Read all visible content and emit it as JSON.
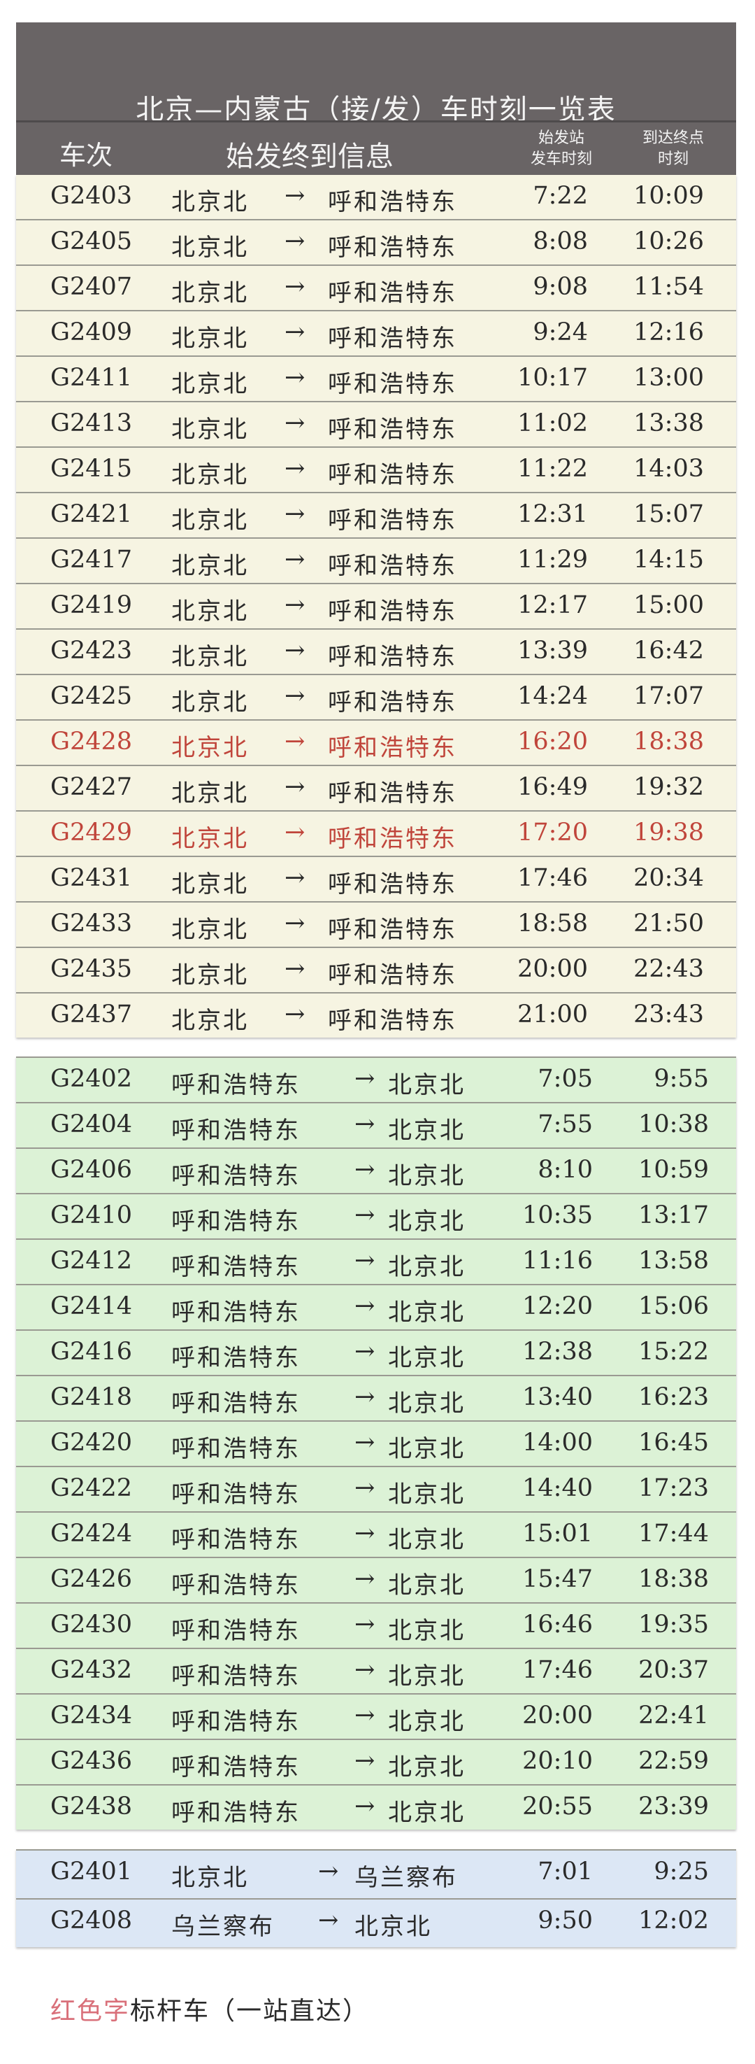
{
  "header": {
    "title": "北京—内蒙古（接/发）车时刻一览表",
    "col_train": "车次",
    "col_info": "始发终到信息",
    "col_depart": "始发站\n发车时刻",
    "col_arrive": "到达终点\n时刻"
  },
  "arrow": "→",
  "colors": {
    "highlight": "#c0453b",
    "section1_bg": "#f6f4e2",
    "section2_bg": "#dcf2d6",
    "section3_bg": "#dce7f5",
    "header_bg": "#696465"
  },
  "sections": [
    {
      "rows": [
        {
          "no": "G2403",
          "from": "北京北",
          "to": "呼和浩特东",
          "dep": "7:22",
          "arr": "10:09"
        },
        {
          "no": "G2405",
          "from": "北京北",
          "to": "呼和浩特东",
          "dep": "8:08",
          "arr": "10:26"
        },
        {
          "no": "G2407",
          "from": "北京北",
          "to": "呼和浩特东",
          "dep": "9:08",
          "arr": "11:54"
        },
        {
          "no": "G2409",
          "from": "北京北",
          "to": "呼和浩特东",
          "dep": "9:24",
          "arr": "12:16"
        },
        {
          "no": "G2411",
          "from": "北京北",
          "to": "呼和浩特东",
          "dep": "10:17",
          "arr": "13:00"
        },
        {
          "no": "G2413",
          "from": "北京北",
          "to": "呼和浩特东",
          "dep": "11:02",
          "arr": "13:38"
        },
        {
          "no": "G2415",
          "from": "北京北",
          "to": "呼和浩特东",
          "dep": "11:22",
          "arr": "14:03"
        },
        {
          "no": "G2421",
          "from": "北京北",
          "to": "呼和浩特东",
          "dep": "12:31",
          "arr": "15:07"
        },
        {
          "no": "G2417",
          "from": "北京北",
          "to": "呼和浩特东",
          "dep": "11:29",
          "arr": "14:15"
        },
        {
          "no": "G2419",
          "from": "北京北",
          "to": "呼和浩特东",
          "dep": "12:17",
          "arr": "15:00"
        },
        {
          "no": "G2423",
          "from": "北京北",
          "to": "呼和浩特东",
          "dep": "13:39",
          "arr": "16:42"
        },
        {
          "no": "G2425",
          "from": "北京北",
          "to": "呼和浩特东",
          "dep": "14:24",
          "arr": "17:07"
        },
        {
          "no": "G2428",
          "from": "北京北",
          "to": "呼和浩特东",
          "dep": "16:20",
          "arr": "18:38",
          "highlight": true
        },
        {
          "no": "G2427",
          "from": "北京北",
          "to": "呼和浩特东",
          "dep": "16:49",
          "arr": "19:32"
        },
        {
          "no": "G2429",
          "from": "北京北",
          "to": "呼和浩特东",
          "dep": "17:20",
          "arr": "19:38",
          "highlight": true
        },
        {
          "no": "G2431",
          "from": "北京北",
          "to": "呼和浩特东",
          "dep": "17:46",
          "arr": "20:34"
        },
        {
          "no": "G2433",
          "from": "北京北",
          "to": "呼和浩特东",
          "dep": "18:58",
          "arr": "21:50"
        },
        {
          "no": "G2435",
          "from": "北京北",
          "to": "呼和浩特东",
          "dep": "20:00",
          "arr": "22:43"
        },
        {
          "no": "G2437",
          "from": "北京北",
          "to": "呼和浩特东",
          "dep": "21:00",
          "arr": "23:43"
        }
      ]
    },
    {
      "rows": [
        {
          "no": "G2402",
          "from": "呼和浩特东",
          "to": "北京北",
          "dep": "7:05",
          "arr": "9:55"
        },
        {
          "no": "G2404",
          "from": "呼和浩特东",
          "to": "北京北",
          "dep": "7:55",
          "arr": "10:38"
        },
        {
          "no": "G2406",
          "from": "呼和浩特东",
          "to": "北京北",
          "dep": "8:10",
          "arr": "10:59"
        },
        {
          "no": "G2410",
          "from": "呼和浩特东",
          "to": "北京北",
          "dep": "10:35",
          "arr": "13:17"
        },
        {
          "no": "G2412",
          "from": "呼和浩特东",
          "to": "北京北",
          "dep": "11:16",
          "arr": "13:58"
        },
        {
          "no": "G2414",
          "from": "呼和浩特东",
          "to": "北京北",
          "dep": "12:20",
          "arr": "15:06"
        },
        {
          "no": "G2416",
          "from": "呼和浩特东",
          "to": "北京北",
          "dep": "12:38",
          "arr": "15:22"
        },
        {
          "no": "G2418",
          "from": "呼和浩特东",
          "to": "北京北",
          "dep": "13:40",
          "arr": "16:23"
        },
        {
          "no": "G2420",
          "from": "呼和浩特东",
          "to": "北京北",
          "dep": "14:00",
          "arr": "16:45"
        },
        {
          "no": "G2422",
          "from": "呼和浩特东",
          "to": "北京北",
          "dep": "14:40",
          "arr": "17:23"
        },
        {
          "no": "G2424",
          "from": "呼和浩特东",
          "to": "北京北",
          "dep": "15:01",
          "arr": "17:44"
        },
        {
          "no": "G2426",
          "from": "呼和浩特东",
          "to": "北京北",
          "dep": "15:47",
          "arr": "18:38"
        },
        {
          "no": "G2430",
          "from": "呼和浩特东",
          "to": "北京北",
          "dep": "16:46",
          "arr": "19:35"
        },
        {
          "no": "G2432",
          "from": "呼和浩特东",
          "to": "北京北",
          "dep": "17:46",
          "arr": "20:37"
        },
        {
          "no": "G2434",
          "from": "呼和浩特东",
          "to": "北京北",
          "dep": "20:00",
          "arr": "22:41"
        },
        {
          "no": "G2436",
          "from": "呼和浩特东",
          "to": "北京北",
          "dep": "20:10",
          "arr": "22:59"
        },
        {
          "no": "G2438",
          "from": "呼和浩特东",
          "to": "北京北",
          "dep": "20:55",
          "arr": "23:39"
        }
      ]
    },
    {
      "rows": [
        {
          "no": "G2401",
          "from": "北京北",
          "to": "乌兰察布",
          "dep": "7:01",
          "arr": "9:25"
        },
        {
          "no": "G2408",
          "from": "乌兰察布",
          "to": "北京北",
          "dep": "9:50",
          "arr": "12:02"
        }
      ]
    }
  ],
  "footnote": {
    "red_part": "红色字",
    "rest": "标杆车（一站直达）"
  }
}
